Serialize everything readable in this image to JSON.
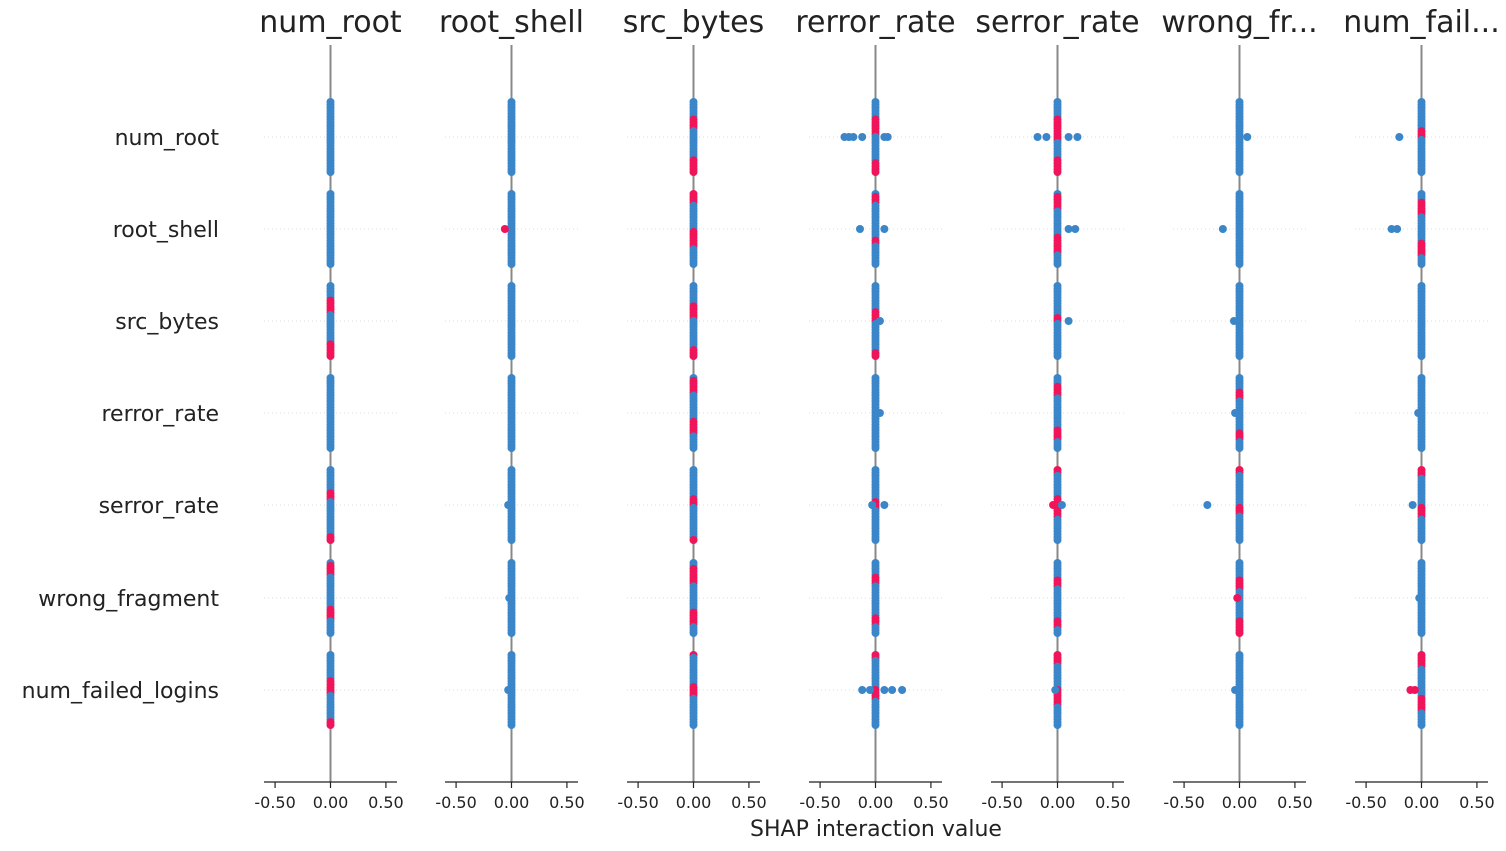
{
  "chart_data": {
    "type": "scatter",
    "title": "",
    "xlabel": "SHAP interaction value",
    "xlim": [
      -0.6,
      0.6
    ],
    "xticks": [
      -0.5,
      0.0,
      0.5
    ],
    "xtick_labels": [
      "-0.50",
      "0.00",
      "0.50"
    ],
    "features": [
      "num_root",
      "root_shell",
      "src_bytes",
      "rerror_rate",
      "serror_rate",
      "wrong_fragment",
      "num_failed_logins"
    ],
    "column_titles": [
      "num_root",
      "root_shell",
      "src_bytes",
      "rerror_rate",
      "serror_rate",
      "wrong_fr...",
      "num_fail..."
    ],
    "colors": {
      "low": "#3a86c8",
      "high": "#f0145a",
      "zero_line": "#888888",
      "axis": "#222222",
      "grid": "#dddddd"
    },
    "outliers": [
      [
        [],
        [],
        [],
        [
          [
            -0.28,
            0
          ],
          [
            -0.24,
            0
          ],
          [
            -0.2,
            0
          ],
          [
            -0.12,
            0
          ],
          [
            0.08,
            0
          ],
          [
            0.11,
            0
          ]
        ],
        [
          [
            -0.18,
            0
          ],
          [
            -0.1,
            0
          ],
          [
            0.18,
            0
          ],
          [
            0.1,
            0
          ]
        ],
        [
          [
            0.07,
            0
          ]
        ],
        [
          [
            -0.2,
            0
          ]
        ]
      ],
      [
        [],
        [
          [
            -0.06,
            1
          ]
        ],
        [],
        [
          [
            -0.14,
            0
          ],
          [
            0.08,
            0
          ]
        ],
        [
          [
            0.1,
            0
          ],
          [
            0.16,
            0
          ]
        ],
        [
          [
            -0.15,
            0
          ]
        ],
        [
          [
            -0.27,
            0
          ],
          [
            -0.22,
            0
          ]
        ]
      ],
      [
        [],
        [],
        [],
        [
          [
            0.04,
            0
          ]
        ],
        [
          [
            0.1,
            0
          ]
        ],
        [
          [
            -0.05,
            0
          ]
        ],
        []
      ],
      [
        [],
        [],
        [],
        [
          [
            0.04,
            0
          ]
        ],
        [],
        [
          [
            -0.04,
            0
          ]
        ],
        [
          [
            -0.03,
            0
          ]
        ]
      ],
      [
        [],
        [
          [
            -0.03,
            0
          ]
        ],
        [],
        [
          [
            0.08,
            0
          ],
          [
            -0.03,
            0
          ]
        ],
        [
          [
            0.04,
            0
          ],
          [
            -0.04,
            1
          ]
        ],
        [
          [
            -0.29,
            0
          ]
        ],
        [
          [
            -0.08,
            0
          ]
        ]
      ],
      [
        [],
        [
          [
            -0.02,
            0
          ]
        ],
        [],
        [],
        [],
        [
          [
            -0.02,
            1
          ]
        ],
        [
          [
            -0.02,
            0
          ]
        ]
      ],
      [
        [],
        [
          [
            -0.03,
            0
          ]
        ],
        [],
        [
          [
            -0.12,
            0
          ],
          [
            0.08,
            0
          ],
          [
            0.24,
            0
          ],
          [
            0.15,
            0
          ],
          [
            -0.05,
            0
          ]
        ],
        [
          [
            -0.02,
            0
          ]
        ],
        [
          [
            -0.04,
            0
          ]
        ],
        [
          [
            -0.1,
            1
          ],
          [
            -0.06,
            1
          ]
        ]
      ]
    ],
    "high_fraction": [
      [
        0.0,
        0.0,
        0.2,
        0.3,
        0.6,
        0.0,
        0.1
      ],
      [
        0.0,
        0.0,
        0.3,
        0.05,
        0.3,
        0.0,
        0.25
      ],
      [
        0.25,
        0.0,
        0.25,
        0.2,
        0.05,
        0.0,
        0.0
      ],
      [
        0.0,
        0.0,
        0.25,
        0.0,
        0.2,
        0.1,
        0.0
      ],
      [
        0.1,
        0.0,
        0.1,
        0.15,
        0.4,
        0.15,
        0.2
      ],
      [
        0.2,
        0.0,
        0.3,
        0.1,
        0.1,
        0.2,
        0.0
      ],
      [
        0.25,
        0.0,
        0.2,
        0.15,
        0.35,
        0.0,
        0.25
      ]
    ]
  }
}
